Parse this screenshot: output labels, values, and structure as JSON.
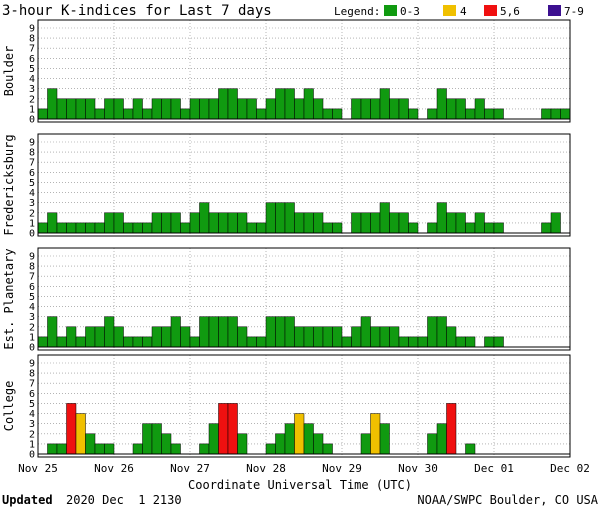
{
  "title": "3-hour K-indices for Last 7 days",
  "legend": {
    "label": "Legend:",
    "items": [
      {
        "label": "0-3",
        "color": "#109a10"
      },
      {
        "label": "4",
        "color": "#f0c000"
      },
      {
        "label": "5,6",
        "color": "#f01010"
      },
      {
        "label": "7-9",
        "color": "#3c1090"
      }
    ]
  },
  "footer": {
    "updated_label": "Updated",
    "updated_value": "2020 Dec  1 2130",
    "credit": "NOAA/SWPC Boulder, CO USA"
  },
  "chart_data": {
    "type": "bar",
    "xlabel": "Coordinate Universal Time (UTC)",
    "x_tick_labels": [
      "Nov 25",
      "Nov 26",
      "Nov 27",
      "Nov 28",
      "Nov 29",
      "Nov 30",
      "Dec 01",
      "Dec 02"
    ],
    "ylim": [
      0,
      9
    ],
    "y_ticks": [
      0,
      1,
      2,
      3,
      4,
      5,
      6,
      7,
      8,
      9
    ],
    "bins_per_day": 8,
    "grid": true,
    "legend_position": "top-right",
    "color_rule": {
      "0-3": "#109a10",
      "4": "#f0c000",
      "5,6": "#f01010",
      "7-9": "#3c1090"
    },
    "panels": [
      {
        "name": "Boulder",
        "values": [
          1,
          3,
          2,
          2,
          2,
          2,
          1,
          2,
          2,
          1,
          2,
          1,
          2,
          2,
          2,
          1,
          2,
          2,
          2,
          3,
          3,
          2,
          2,
          1,
          2,
          3,
          3,
          2,
          3,
          2,
          1,
          1,
          0,
          2,
          2,
          2,
          3,
          2,
          2,
          1,
          0,
          1,
          3,
          2,
          2,
          1,
          2,
          1,
          1,
          0,
          0,
          0,
          0,
          1,
          1,
          1,
          0
        ]
      },
      {
        "name": "Fredericksburg",
        "values": [
          1,
          2,
          1,
          1,
          1,
          1,
          1,
          2,
          2,
          1,
          1,
          1,
          2,
          2,
          2,
          1,
          2,
          3,
          2,
          2,
          2,
          2,
          1,
          1,
          3,
          3,
          3,
          2,
          2,
          2,
          1,
          1,
          0,
          2,
          2,
          2,
          3,
          2,
          2,
          1,
          0,
          1,
          3,
          2,
          2,
          1,
          2,
          1,
          1,
          0,
          0,
          0,
          0,
          1,
          2,
          0,
          0
        ]
      },
      {
        "name": "Est. Planetary",
        "values": [
          1,
          3,
          1,
          2,
          1,
          2,
          2,
          3,
          2,
          1,
          1,
          1,
          2,
          2,
          3,
          2,
          1,
          3,
          3,
          3,
          3,
          2,
          1,
          1,
          3,
          3,
          3,
          2,
          2,
          2,
          2,
          2,
          1,
          2,
          3,
          2,
          2,
          2,
          1,
          1,
          1,
          3,
          3,
          2,
          1,
          1,
          0,
          1,
          1,
          0,
          0,
          0,
          0,
          0,
          0,
          0,
          0
        ]
      },
      {
        "name": "College",
        "values": [
          0,
          1,
          1,
          5,
          4,
          2,
          1,
          1,
          0,
          0,
          1,
          3,
          3,
          2,
          1,
          0,
          0,
          1,
          3,
          5,
          5,
          2,
          0,
          0,
          1,
          2,
          3,
          4,
          3,
          2,
          1,
          0,
          0,
          0,
          2,
          4,
          3,
          0,
          0,
          0,
          0,
          2,
          3,
          5,
          0,
          1,
          0,
          0,
          0,
          0,
          0,
          0,
          0,
          0,
          0,
          0,
          0
        ]
      }
    ]
  }
}
